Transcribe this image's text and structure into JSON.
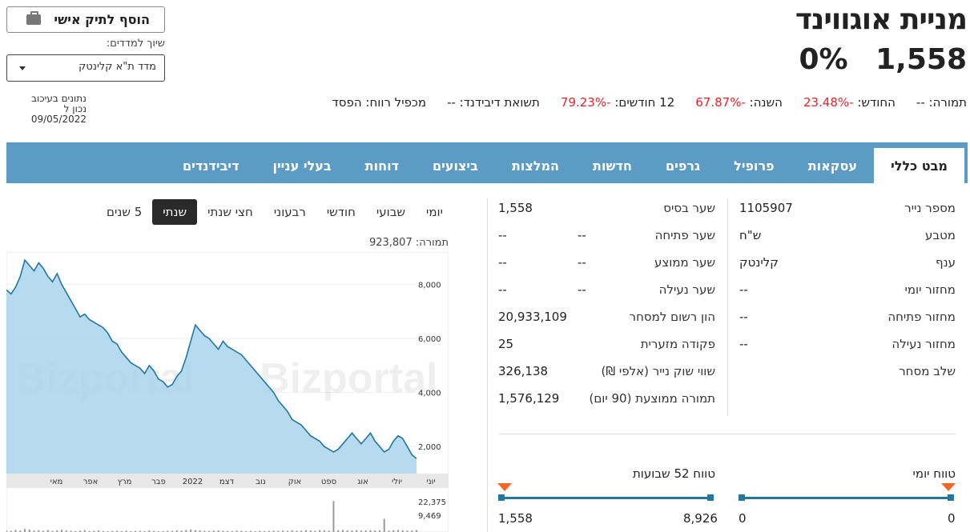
{
  "header": {
    "stock_name": "מניית אוגווינד",
    "price": "1,558",
    "change": "0%",
    "add_button": "הוסף לתיק אישי",
    "index_label": "שיוך למדדים:",
    "index_selected": "מדד ת\"א קלינטק",
    "delay_line1": "נתונים בעיכוב",
    "delay_line2": "נכון ל 09/05/2022"
  },
  "stats": [
    {
      "label": "תמורה:",
      "value": "--",
      "neg": false
    },
    {
      "label": "החודש:",
      "value": "-23.48%",
      "neg": true
    },
    {
      "label": "השנה:",
      "value": "-67.87%",
      "neg": true
    },
    {
      "label": "12 חודשים:",
      "value": "-79.23%",
      "neg": true
    },
    {
      "label": "תשואת דיבידנד:",
      "value": "--",
      "neg": false
    },
    {
      "label": "מכפיל רווח:",
      "value": "הפסד",
      "neg": false
    }
  ],
  "tabs": [
    {
      "label": "מבט כללי",
      "active": true
    },
    {
      "label": "עסקאות",
      "active": false
    },
    {
      "label": "פרופיל",
      "active": false
    },
    {
      "label": "גרפים",
      "active": false
    },
    {
      "label": "חדשות",
      "active": false
    },
    {
      "label": "המלצות",
      "active": false
    },
    {
      "label": "ביצועים",
      "active": false
    },
    {
      "label": "דוחות",
      "active": false
    },
    {
      "label": "בעלי עניין",
      "active": false
    },
    {
      "label": "דיבידנדים",
      "active": false
    }
  ],
  "info_right": [
    {
      "label": "מספר נייר",
      "value": "1105907"
    },
    {
      "label": "מטבע",
      "value": "ש\"ח"
    },
    {
      "label": "ענף",
      "value": "קלינטק"
    },
    {
      "label": "מחזור יומי",
      "value": "--"
    },
    {
      "label": "מחזור פתיחה",
      "value": "--"
    },
    {
      "label": "מחזור נעילה",
      "value": "--"
    },
    {
      "label": "שלב מסחר",
      "value": ""
    }
  ],
  "info_mid": [
    {
      "label": "שער בסיס",
      "value": "1,558",
      "extra": ""
    },
    {
      "label": "שער פתיחה",
      "value": "--",
      "extra": "--"
    },
    {
      "label": "שער ממוצע",
      "value": "--",
      "extra": "--"
    },
    {
      "label": "שער נעילה",
      "value": "--",
      "extra": "--"
    },
    {
      "label": "הון רשום למסחר",
      "value": "20,933,109",
      "extra": ""
    },
    {
      "label": "פקודה מזערית",
      "value": "25",
      "extra": ""
    },
    {
      "label": "שווי שוק נייר (אלפי ₪)",
      "value": "326,138",
      "extra": ""
    },
    {
      "label": "תמורה ממוצעת (90 יום)",
      "value": "1,576,129",
      "extra": ""
    }
  ],
  "ranges": {
    "daily_title": "טווח יומי",
    "daily_low": "0",
    "daily_high": "0",
    "weekly_title": "טווח 52 שבועות",
    "weekly_low": "1,558",
    "weekly_high": "8,926"
  },
  "periods": [
    {
      "label": "יומי",
      "active": false
    },
    {
      "label": "שבועי",
      "active": false
    },
    {
      "label": "חודשי",
      "active": false
    },
    {
      "label": "רבעוני",
      "active": false
    },
    {
      "label": "חצי שנתי",
      "active": false
    },
    {
      "label": "שנתי",
      "active": true
    },
    {
      "label": "5 שנים",
      "active": false
    }
  ],
  "volume_label": "תמורה:  923,807",
  "colors": {
    "accent": "#5b9bc4",
    "negative": "#e0242e",
    "chart_line": "#23779c",
    "chart_fill": "#a9d5ef",
    "marker": "#f26522"
  },
  "chart_data": {
    "type": "area",
    "title": "",
    "watermark": "Bizportal",
    "x_ticks": [
      "יוני",
      "יולי",
      "אוג",
      "ספט",
      "אוק",
      "נוב",
      "דצמ",
      "2022",
      "פבר",
      "מרץ",
      "אפר",
      "מאי"
    ],
    "y_ticks": [
      "8,000",
      "6,000",
      "4,000",
      "2,000"
    ],
    "ylim": [
      1000,
      9200
    ],
    "volume_ticks": [
      "22,375",
      "9,469"
    ],
    "volume_max": 26000,
    "series": [
      {
        "values": [
          7800,
          7650,
          7900,
          8300,
          8900,
          8700,
          8500,
          8800,
          8600,
          8300,
          8100,
          8400,
          8000,
          7700,
          7400,
          7100,
          6800,
          6900,
          6700,
          6600,
          6500,
          6400,
          6200,
          5900,
          5800,
          5500,
          5300,
          5100,
          5000,
          4900,
          4700,
          5000,
          4800,
          4500,
          4400,
          4200,
          4300,
          4600,
          4800,
          5300,
          5900,
          6500,
          6300,
          6100,
          6000,
          5800,
          5600,
          5900,
          5700,
          5600,
          5500,
          5400,
          5200,
          5000,
          4800,
          4600,
          4400,
          4200,
          4000,
          3700,
          3500,
          3300,
          3000,
          2900,
          2800,
          2600,
          2400,
          2300,
          2200,
          2000,
          1900,
          1800,
          1900,
          2100,
          2300,
          2500,
          2300,
          2100,
          2300,
          2500,
          2200,
          2000,
          1800,
          1900,
          2200,
          2400,
          2300,
          2000,
          1700,
          1558
        ]
      }
    ],
    "volume": [
      1200,
      900,
      1500,
      1100,
      2200,
      1800,
      1000,
      1300,
      900,
      1400,
      800,
      1200,
      1600,
      1100,
      900,
      700,
      1000,
      1300,
      800,
      900,
      1100,
      700,
      600,
      800,
      900,
      700,
      1000,
      600,
      800,
      900,
      700,
      1100,
      800,
      600,
      700,
      900,
      800,
      1200,
      1000,
      1500,
      1800,
      1400,
      1100,
      900,
      800,
      1000,
      1200,
      900,
      800,
      700,
      1000,
      900,
      700,
      800,
      600,
      900,
      700,
      800,
      1000,
      900,
      1100,
      800,
      1200,
      900,
      1000,
      1300,
      1100,
      900,
      1400,
      1200,
      1000,
      22375,
      1300,
      1500,
      1200,
      1100,
      1400,
      1000,
      1200,
      1300,
      1100,
      1200,
      9469,
      1000,
      1300,
      1500,
      1200,
      1000,
      1100,
      1400
    ]
  }
}
